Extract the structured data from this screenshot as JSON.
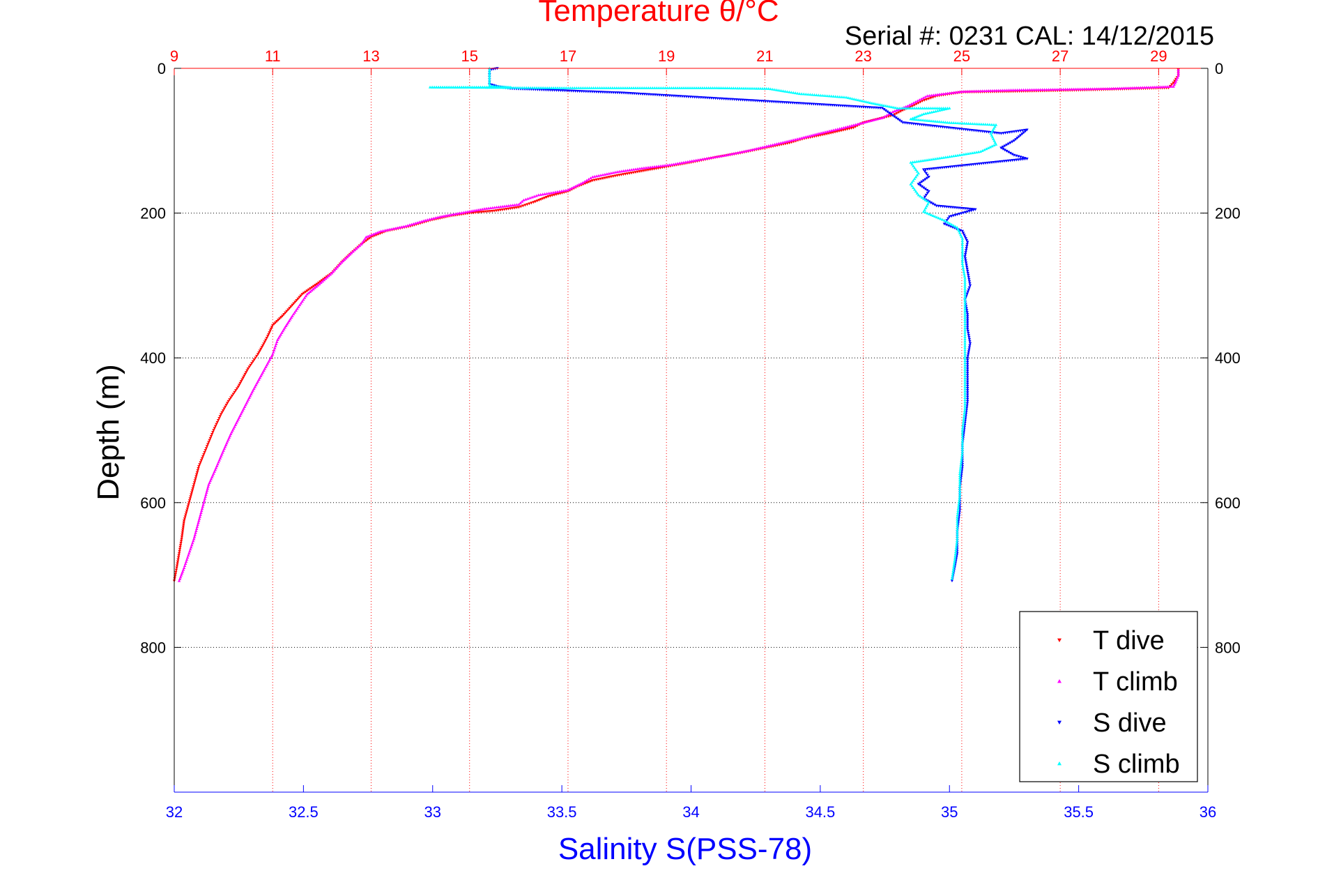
{
  "chart_data": {
    "type": "scatter",
    "title": "Temperature θ/°C",
    "serial_text": "Serial #: 0231  CAL: 14/12/2015",
    "xlabel": "Salinity S(PSS-78)",
    "ylabel": "Depth (m)",
    "temperature_axis": {
      "range": [
        9,
        30
      ],
      "ticks": [
        "9",
        "11",
        "13",
        "15",
        "17",
        "19",
        "21",
        "23",
        "25",
        "27",
        "29"
      ]
    },
    "salinity_axis": {
      "range": [
        32,
        36
      ],
      "ticks": [
        "32",
        "32.5",
        "33",
        "33.5",
        "34",
        "34.5",
        "35",
        "35.5",
        "36"
      ]
    },
    "depth_axis": {
      "range": [
        0,
        1000
      ],
      "reversed": true,
      "ticks_left": [
        "0",
        "200",
        "400",
        "600",
        "800"
      ],
      "ticks_right": [
        "0",
        "200",
        "400",
        "600",
        "800"
      ]
    },
    "grid": true,
    "legend_position": "bottom-right",
    "series": [
      {
        "name": "T dive",
        "axis": "temperature",
        "color": "#ff0000",
        "marker": "triangle-down",
        "points": [
          [
            29.4,
            2
          ],
          [
            29.4,
            10
          ],
          [
            29.3,
            20
          ],
          [
            29.2,
            27
          ],
          [
            27.5,
            30
          ],
          [
            26,
            32
          ],
          [
            25,
            33
          ],
          [
            24.5,
            38
          ],
          [
            24.2,
            45
          ],
          [
            24,
            52
          ],
          [
            23.8,
            58
          ],
          [
            23.6,
            65
          ],
          [
            23.3,
            70
          ],
          [
            23,
            75
          ],
          [
            22.8,
            82
          ],
          [
            22.3,
            90
          ],
          [
            21.8,
            97
          ],
          [
            21.5,
            103
          ],
          [
            21,
            110
          ],
          [
            20.5,
            117
          ],
          [
            20,
            123
          ],
          [
            19.5,
            130
          ],
          [
            19,
            136
          ],
          [
            18.5,
            142
          ],
          [
            18,
            148
          ],
          [
            17.5,
            155
          ],
          [
            17.2,
            163
          ],
          [
            17,
            170
          ],
          [
            16.6,
            177
          ],
          [
            16.3,
            185
          ],
          [
            16,
            192
          ],
          [
            15.5,
            197
          ],
          [
            15,
            200
          ],
          [
            14.6,
            204
          ],
          [
            14.2,
            210
          ],
          [
            13.8,
            218
          ],
          [
            13.3,
            225
          ],
          [
            13,
            233
          ],
          [
            12.8,
            243
          ],
          [
            12.6,
            255
          ],
          [
            12.4,
            268
          ],
          [
            12.2,
            283
          ],
          [
            11.9,
            298
          ],
          [
            11.6,
            312
          ],
          [
            11.4,
            327
          ],
          [
            11.2,
            342
          ],
          [
            11,
            355
          ],
          [
            10.9,
            370
          ],
          [
            10.8,
            383
          ],
          [
            10.7,
            395
          ],
          [
            10.5,
            415
          ],
          [
            10.3,
            440
          ],
          [
            10.1,
            460
          ],
          [
            9.95,
            478
          ],
          [
            9.8,
            500
          ],
          [
            9.65,
            525
          ],
          [
            9.5,
            550
          ],
          [
            9.4,
            575
          ],
          [
            9.3,
            600
          ],
          [
            9.2,
            625
          ],
          [
            9.15,
            650
          ],
          [
            9.1,
            670
          ],
          [
            9.05,
            690
          ],
          [
            9.0,
            708
          ]
        ]
      },
      {
        "name": "T climb",
        "axis": "temperature",
        "color": "#ff00ff",
        "marker": "triangle-up",
        "points": [
          [
            29.4,
            2
          ],
          [
            29.4,
            10
          ],
          [
            29.35,
            18
          ],
          [
            29.3,
            25
          ],
          [
            28,
            28
          ],
          [
            26,
            30
          ],
          [
            25,
            32
          ],
          [
            24.3,
            38
          ],
          [
            24.1,
            45
          ],
          [
            23.9,
            52
          ],
          [
            23.6,
            60
          ],
          [
            23.4,
            68
          ],
          [
            23,
            75
          ],
          [
            22.6,
            82
          ],
          [
            22.1,
            90
          ],
          [
            21.7,
            97
          ],
          [
            21.2,
            105
          ],
          [
            20.7,
            113
          ],
          [
            20.2,
            120
          ],
          [
            19.6,
            127
          ],
          [
            19.1,
            133
          ],
          [
            18.5,
            138
          ],
          [
            18,
            143
          ],
          [
            17.5,
            150
          ],
          [
            17.3,
            158
          ],
          [
            17,
            168
          ],
          [
            16.4,
            175
          ],
          [
            16.1,
            182
          ],
          [
            16,
            188
          ],
          [
            15.3,
            194
          ],
          [
            14.8,
            200
          ],
          [
            14.4,
            205
          ],
          [
            14.1,
            210
          ],
          [
            13.7,
            218
          ],
          [
            13.2,
            225
          ],
          [
            12.9,
            233
          ],
          [
            12.8,
            243
          ],
          [
            12.6,
            255
          ],
          [
            12.4,
            268
          ],
          [
            12.2,
            283
          ],
          [
            11.95,
            298
          ],
          [
            11.7,
            312
          ],
          [
            11.55,
            327
          ],
          [
            11.4,
            342
          ],
          [
            11.25,
            358
          ],
          [
            11.1,
            375
          ],
          [
            11,
            395
          ],
          [
            10.8,
            420
          ],
          [
            10.6,
            445
          ],
          [
            10.45,
            465
          ],
          [
            10.3,
            485
          ],
          [
            10.15,
            505
          ],
          [
            10,
            528
          ],
          [
            9.85,
            552
          ],
          [
            9.7,
            575
          ],
          [
            9.6,
            600
          ],
          [
            9.5,
            625
          ],
          [
            9.4,
            650
          ],
          [
            9.3,
            670
          ],
          [
            9.2,
            690
          ],
          [
            9.1,
            708
          ]
        ]
      },
      {
        "name": "S dive",
        "axis": "salinity",
        "color": "#0000ff",
        "marker": "triangle-down",
        "points": [
          [
            33.25,
            0
          ],
          [
            33.22,
            2
          ],
          [
            33.22,
            12
          ],
          [
            33.22,
            22
          ],
          [
            33.25,
            25
          ],
          [
            33.3,
            28
          ],
          [
            33.74,
            34
          ],
          [
            34.74,
            55
          ],
          [
            34.78,
            65
          ],
          [
            34.82,
            75
          ],
          [
            35.2,
            90
          ],
          [
            35.3,
            85
          ],
          [
            35.25,
            100
          ],
          [
            35.2,
            110
          ],
          [
            35.25,
            120
          ],
          [
            35.3,
            125
          ],
          [
            34.9,
            140
          ],
          [
            34.92,
            150
          ],
          [
            34.88,
            160
          ],
          [
            34.92,
            170
          ],
          [
            34.9,
            180
          ],
          [
            34.95,
            190
          ],
          [
            35.1,
            195
          ],
          [
            35.0,
            205
          ],
          [
            34.98,
            215
          ],
          [
            35.05,
            225
          ],
          [
            35.07,
            240
          ],
          [
            35.06,
            260
          ],
          [
            35.07,
            280
          ],
          [
            35.08,
            300
          ],
          [
            35.06,
            320
          ],
          [
            35.07,
            340
          ],
          [
            35.07,
            360
          ],
          [
            35.08,
            380
          ],
          [
            35.07,
            400
          ],
          [
            35.07,
            430
          ],
          [
            35.07,
            460
          ],
          [
            35.06,
            490
          ],
          [
            35.05,
            520
          ],
          [
            35.05,
            550
          ],
          [
            35.04,
            580
          ],
          [
            35.04,
            610
          ],
          [
            35.03,
            640
          ],
          [
            35.03,
            670
          ],
          [
            35.02,
            690
          ],
          [
            35.01,
            708
          ]
        ]
      },
      {
        "name": "S climb",
        "axis": "salinity",
        "color": "#00ffff",
        "marker": "triangle-up",
        "points": [
          [
            33.22,
            0
          ],
          [
            33.22,
            8
          ],
          [
            33.22,
            16
          ],
          [
            33.22,
            24
          ],
          [
            33.3,
            26
          ],
          [
            32.99,
            26
          ],
          [
            33.5,
            27
          ],
          [
            33.9,
            27
          ],
          [
            34.1,
            27
          ],
          [
            34.3,
            28
          ],
          [
            34.42,
            35
          ],
          [
            34.6,
            40
          ],
          [
            34.7,
            48
          ],
          [
            34.8,
            55
          ],
          [
            35.0,
            55
          ],
          [
            34.9,
            63
          ],
          [
            34.85,
            70
          ],
          [
            35.0,
            75
          ],
          [
            35.18,
            78
          ],
          [
            35.16,
            90
          ],
          [
            35.18,
            105
          ],
          [
            35.12,
            115
          ],
          [
            35.0,
            122
          ],
          [
            34.85,
            130
          ],
          [
            34.88,
            145
          ],
          [
            34.85,
            160
          ],
          [
            34.88,
            175
          ],
          [
            34.92,
            185
          ],
          [
            34.9,
            198
          ],
          [
            34.98,
            210
          ],
          [
            35.03,
            220
          ],
          [
            35.05,
            235
          ],
          [
            35.05,
            250
          ],
          [
            35.05,
            270
          ],
          [
            35.06,
            290
          ],
          [
            35.06,
            310
          ],
          [
            35.06,
            330
          ],
          [
            35.06,
            350
          ],
          [
            35.06,
            380
          ],
          [
            35.06,
            410
          ],
          [
            35.06,
            440
          ],
          [
            35.06,
            470
          ],
          [
            35.05,
            500
          ],
          [
            35.05,
            530
          ],
          [
            35.04,
            560
          ],
          [
            35.04,
            590
          ],
          [
            35.03,
            620
          ],
          [
            35.03,
            650
          ],
          [
            35.02,
            680
          ],
          [
            35.01,
            705
          ]
        ]
      }
    ]
  }
}
